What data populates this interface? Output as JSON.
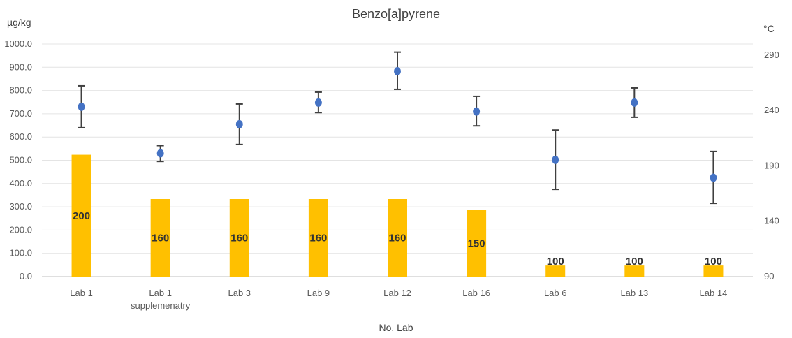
{
  "chart_data": {
    "type": "bar",
    "title": "Benzo[a]pyrene",
    "xlabel": "No. Lab",
    "ylabel": "µg/kg",
    "y2label": "°C",
    "categories": [
      [
        "Lab 1"
      ],
      [
        "Lab 1",
        "supplemenatry"
      ],
      [
        "Lab 3"
      ],
      [
        "Lab 9"
      ],
      [
        "Lab 12"
      ],
      [
        "Lab 16"
      ],
      [
        "Lab 6"
      ],
      [
        "Lab 13"
      ],
      [
        "Lab 14"
      ]
    ],
    "ylim": [
      0,
      1000
    ],
    "yticks": [
      "0.0",
      "100.0",
      "200.0",
      "300.0",
      "400.0",
      "500.0",
      "600.0",
      "700.0",
      "800.0",
      "900.0",
      "1000.0"
    ],
    "y2lim": [
      90,
      300
    ],
    "y2ticks": [
      "90",
      "140",
      "190",
      "240",
      "290"
    ],
    "grid": true,
    "series": [
      {
        "kind": "bar",
        "axis": "right",
        "color": "#FFC000",
        "values": [
          200,
          160,
          160,
          160,
          160,
          150,
          100,
          100,
          100
        ],
        "labels": [
          "200",
          "160",
          "160",
          "160",
          "160",
          "150",
          "100",
          "100",
          "100"
        ]
      },
      {
        "kind": "scatter-errorbar",
        "axis": "left",
        "color": "#4472C4",
        "error_color": "#404040",
        "values": [
          730,
          530,
          655,
          748,
          883,
          710,
          502,
          748,
          425
        ],
        "error_low": [
          640,
          495,
          568,
          705,
          805,
          648,
          375,
          685,
          315
        ],
        "error_high": [
          820,
          563,
          742,
          793,
          965,
          775,
          630,
          811,
          538
        ]
      }
    ]
  }
}
